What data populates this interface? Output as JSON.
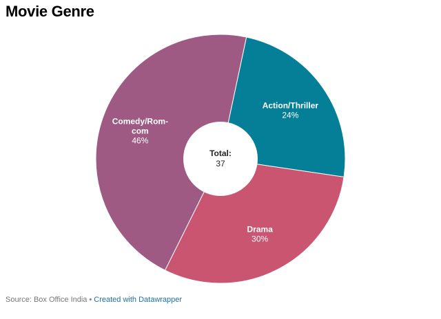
{
  "chart_data": {
    "type": "pie",
    "title": "Movie Genre",
    "categories": [
      "Action/Thriller",
      "Drama",
      "Comedy/Rom-com"
    ],
    "values": [
      24,
      30,
      46
    ],
    "value_labels": [
      "24%",
      "30%",
      "46%"
    ],
    "label_lines": [
      [
        "Action/Thriller"
      ],
      [
        "Drama"
      ],
      [
        "Comedy/Rom-",
        "com"
      ]
    ],
    "colors": [
      "#057f97",
      "#c95571",
      "#9e5a82"
    ],
    "center": {
      "label": "Total:",
      "value": "37"
    },
    "legend": "none"
  },
  "footer": {
    "source": "Source: Box Office India",
    "separator": "•",
    "credit": "Created with Datawrapper"
  }
}
